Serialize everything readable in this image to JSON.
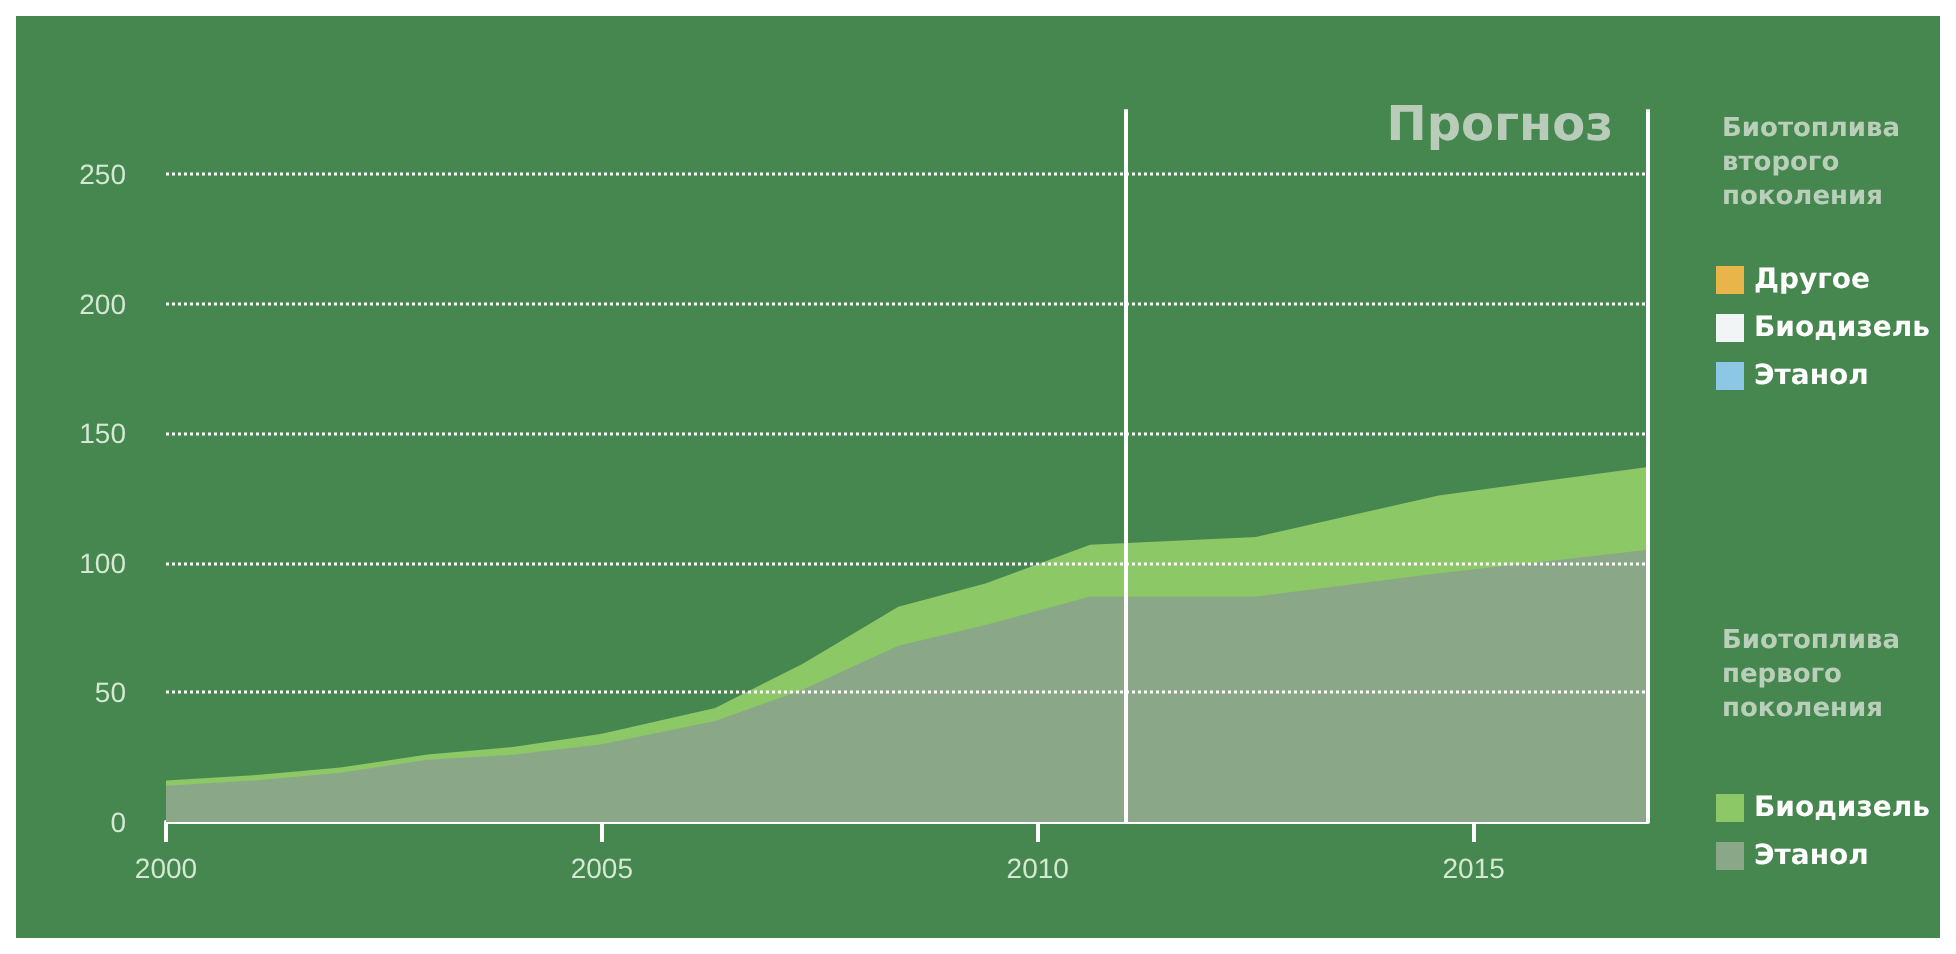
{
  "chart_data": {
    "type": "area",
    "stacked": true,
    "x": [
      2000,
      2001,
      2002,
      2003,
      2004,
      2005,
      2006.3,
      2007.3,
      2008.4,
      2009.4,
      2010.6,
      2012.5,
      2014.6,
      2017
    ],
    "series": [
      {
        "name": "Этанол",
        "color": "#8aa888",
        "values": [
          14,
          16,
          19,
          24,
          26,
          30,
          39,
          51,
          68,
          76,
          87,
          87,
          96,
          105
        ]
      },
      {
        "name": "Биодизель",
        "color": "#8cc866",
        "values": [
          2,
          2,
          2,
          2,
          3,
          4,
          5,
          10,
          15,
          16,
          20,
          23,
          30,
          32
        ]
      },
      {
        "name": "Этанол",
        "color": "#8cc8e6",
        "values": [
          null,
          null,
          null,
          null,
          null,
          null,
          null,
          null,
          null,
          null,
          null,
          null,
          null,
          null
        ]
      },
      {
        "name": "Биодизель",
        "color": "#f2f5f5",
        "values": [
          null,
          null,
          null,
          null,
          null,
          null,
          null,
          null,
          null,
          null,
          null,
          null,
          null,
          null
        ]
      },
      {
        "name": "Другое",
        "color": "#e8b54a",
        "values": [
          null,
          null,
          null,
          null,
          null,
          null,
          null,
          null,
          null,
          null,
          null,
          null,
          null,
          null
        ]
      }
    ],
    "xlim": [
      2000,
      2017
    ],
    "xticks": [
      2000,
      2005,
      2010,
      2015
    ],
    "ylim": [
      0,
      275
    ],
    "yticks": [
      0,
      50,
      100,
      150,
      200,
      250
    ],
    "grid": "y",
    "legend": "right",
    "marker": "none",
    "ref_lines": [
      {
        "axis": "x",
        "value": 2011,
        "color": "#ffffff"
      },
      {
        "axis": "x",
        "value": 2017,
        "color": "#ffffff"
      }
    ],
    "annotations": [
      "Биотоплива второго поколения",
      "Биотоплива первого поколения",
      "Прогноз"
    ]
  }
}
